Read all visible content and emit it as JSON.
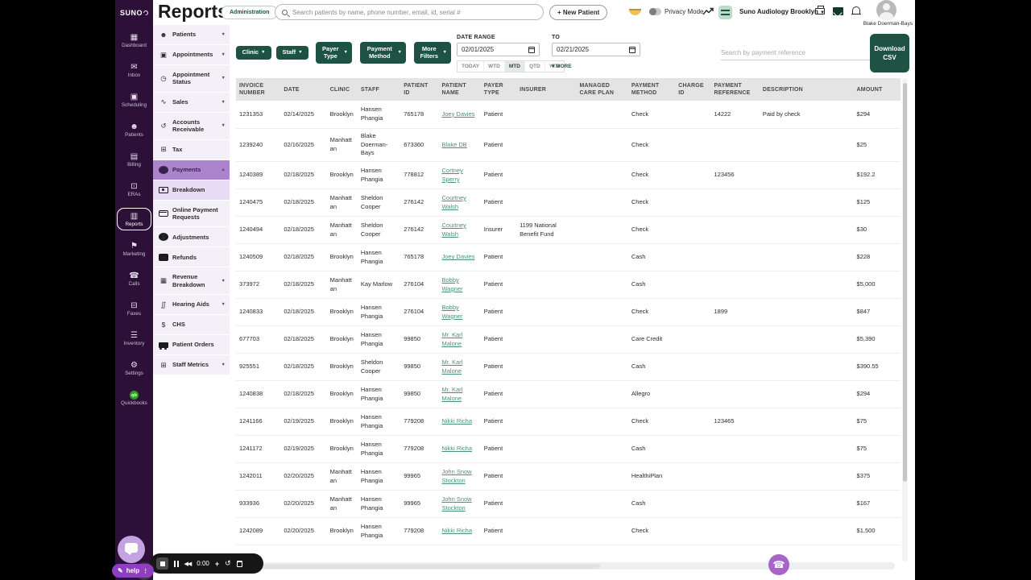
{
  "header": {
    "logo_text": "SUNO",
    "title": "Reports",
    "admin_chip": "Administration",
    "search_placeholder": "Search patients by name, phone number, email, id, serial #",
    "new_patient_label": "+ New Patient",
    "privacy_mode_label": "Privacy Mode",
    "clinic_selector": "Suno Audiology Brooklyn",
    "user_name": "Blake Doerman-Bays"
  },
  "nav_rail": {
    "items": [
      {
        "label": "Dashboard",
        "icon": "dashboard-icon",
        "active": false
      },
      {
        "label": "Inbox",
        "icon": "inbox-icon",
        "active": false
      },
      {
        "label": "Scheduling",
        "icon": "scheduling-icon",
        "active": false
      },
      {
        "label": "Patients",
        "icon": "patients-icon",
        "active": false
      },
      {
        "label": "Billing",
        "icon": "billing-icon",
        "active": false
      },
      {
        "label": "ERAs",
        "icon": "eras-icon",
        "active": false
      },
      {
        "label": "Reports",
        "icon": "reports-icon",
        "active": true
      },
      {
        "label": "Marketing",
        "icon": "marketing-icon",
        "active": false
      },
      {
        "label": "Calls",
        "icon": "calls-icon",
        "active": false
      },
      {
        "label": "Faxes",
        "icon": "faxes-icon",
        "active": false
      },
      {
        "label": "Inventory",
        "icon": "inventory-icon",
        "active": false
      },
      {
        "label": "Settings",
        "icon": "settings-icon",
        "active": false
      },
      {
        "label": "Quickbooks",
        "icon": "quickbooks-icon",
        "active": false
      }
    ]
  },
  "sidebar": {
    "items": [
      {
        "label": "Patients",
        "icon": "patients-icon",
        "chevron": "down",
        "state": "none"
      },
      {
        "label": "Appointments",
        "icon": "appointments-icon",
        "chevron": "down",
        "state": "none"
      },
      {
        "label": "Appointment Status",
        "icon": "appointment-status-icon",
        "chevron": "down",
        "state": "none"
      },
      {
        "label": "Sales",
        "icon": "sales-icon",
        "chevron": "down",
        "state": "none"
      },
      {
        "label": "Accounts Receivable",
        "icon": "accounts-receivable-icon",
        "chevron": "down",
        "state": "none"
      },
      {
        "label": "Tax",
        "icon": "tax-icon",
        "chevron": "none",
        "state": "none"
      },
      {
        "label": "Payments",
        "icon": "payments-icon",
        "chevron": "up",
        "state": "active"
      },
      {
        "label": "Breakdown",
        "icon": "breakdown-icon",
        "chevron": "none",
        "state": "subactive"
      },
      {
        "label": "Online Payment Requests",
        "icon": "online-payment-requests-icon",
        "chevron": "none",
        "state": "none"
      },
      {
        "label": "Adjustments",
        "icon": "adjustments-icon",
        "chevron": "none",
        "state": "none"
      },
      {
        "label": "Refunds",
        "icon": "refunds-icon",
        "chevron": "none",
        "state": "none"
      },
      {
        "label": "Revenue Breakdown",
        "icon": "revenue-breakdown-icon",
        "chevron": "down",
        "state": "none"
      },
      {
        "label": "Hearing Aids",
        "icon": "hearing-aids-icon",
        "chevron": "down",
        "state": "none"
      },
      {
        "label": "CHS",
        "icon": "chs-icon",
        "chevron": "none",
        "state": "none"
      },
      {
        "label": "Patient Orders",
        "icon": "patient-orders-icon",
        "chevron": "none",
        "state": "none"
      },
      {
        "label": "Staff Metrics",
        "icon": "staff-metrics-icon",
        "chevron": "down",
        "state": "none"
      }
    ]
  },
  "filters": {
    "dropdowns": [
      {
        "label": "Clinic",
        "tall": false
      },
      {
        "label": "Staff",
        "tall": false
      },
      {
        "label": "Payer Type",
        "tall": true
      },
      {
        "label": "Payment Method",
        "tall": true
      },
      {
        "label": "More Filters",
        "tall": true
      }
    ],
    "date_range_label": "DATE RANGE",
    "date_from": "02/01/2025",
    "to_label": "TO",
    "date_to": "02/21/2025",
    "quick_ranges": [
      "TODAY",
      "WTD",
      "MTD",
      "QTD",
      "YTD"
    ],
    "active_range": "MTD",
    "more_label": "MORE",
    "ref_search_placeholder": "Search by payment reference",
    "download_label": "Download CSV"
  },
  "table": {
    "columns": [
      "Invoice Number",
      "Date",
      "Clinic",
      "Staff",
      "Patient ID",
      "Patient Name",
      "Payer Type",
      "Insurer",
      "Managed Care Plan",
      "Payment Method",
      "Charge ID",
      "Payment Reference",
      "Description",
      "Amount"
    ],
    "rows": [
      [
        "1231353",
        "02/14/2025",
        "Brooklyn",
        "Hansen Phangia",
        "765178",
        "Joey Davies",
        "Patient",
        "",
        "",
        "Check",
        "",
        "14222",
        "Paid by check",
        "$294"
      ],
      [
        "1239240",
        "02/16/2025",
        "Manhattan",
        "Blake Doerman-Bays",
        "673360",
        "Blake DB",
        "Patient",
        "",
        "",
        "Check",
        "",
        "",
        "",
        "$25"
      ],
      [
        "1240389",
        "02/18/2025",
        "Brooklyn",
        "Hansen Phangia",
        "778812",
        "Cortney Sperry",
        "Patient",
        "",
        "",
        "Check",
        "",
        "123456",
        "",
        "$192.2"
      ],
      [
        "1240475",
        "02/18/2025",
        "Manhattan",
        "Sheldon Cooper",
        "276142",
        "Courtney Walsh",
        "Patient",
        "",
        "",
        "Check",
        "",
        "",
        "",
        "$125"
      ],
      [
        "1240494",
        "02/18/2025",
        "Manhattan",
        "Sheldon Cooper",
        "276142",
        "Courtney Walsh",
        "Insurer",
        "1199 National Benefit Fund",
        "",
        "Check",
        "",
        "",
        "",
        "$30"
      ],
      [
        "1240509",
        "02/18/2025",
        "Brooklyn",
        "Hansen Phangia",
        "765178",
        "Joey Davies",
        "Patient",
        "",
        "",
        "Cash",
        "",
        "",
        "",
        "$228"
      ],
      [
        "373972",
        "02/18/2025",
        "Manhattan",
        "Kay Marlow",
        "276104",
        "Bobby Wagner",
        "Patient",
        "",
        "",
        "Cash",
        "",
        "",
        "",
        "$5,000"
      ],
      [
        "1240833",
        "02/18/2025",
        "Brooklyn",
        "Hansen Phangia",
        "276104",
        "Bobby Wagner",
        "Patient",
        "",
        "",
        "Check",
        "",
        "1899",
        "",
        "$847"
      ],
      [
        "677703",
        "02/18/2025",
        "Brooklyn",
        "Hansen Phangia",
        "99850",
        "Mr. Karl Malone",
        "Patient",
        "",
        "",
        "Care Credit",
        "",
        "",
        "",
        "$5,390"
      ],
      [
        "925551",
        "02/18/2025",
        "Brooklyn",
        "Sheldon Cooper",
        "99850",
        "Mr. Karl Malone",
        "Patient",
        "",
        "",
        "Cash",
        "",
        "",
        "",
        "$390.55"
      ],
      [
        "1240838",
        "02/18/2025",
        "Brooklyn",
        "Hansen Phangia",
        "99850",
        "Mr. Karl Malone",
        "Patient",
        "",
        "",
        "Allegro",
        "",
        "",
        "",
        "$294"
      ],
      [
        "1241166",
        "02/19/2025",
        "Brooklyn",
        "Hansen Phangia",
        "779208",
        "Nikki Richa",
        "Patient",
        "",
        "",
        "Check",
        "",
        "123465",
        "",
        "$75"
      ],
      [
        "1241172",
        "02/19/2025",
        "Brooklyn",
        "Hansen Phangia",
        "779208",
        "Nikki Richa",
        "Patient",
        "",
        "",
        "Cash",
        "",
        "",
        "",
        "$75"
      ],
      [
        "1242011",
        "02/20/2025",
        "Manhattan",
        "Hansen Phangia",
        "99965",
        "John Snow Stockton",
        "Patient",
        "",
        "",
        "HealthiPlan",
        "",
        "",
        "",
        "$375"
      ],
      [
        "933936",
        "02/20/2025",
        "Manhattan",
        "Hansen Phangia",
        "99965",
        "John Snow Stockton",
        "Patient",
        "",
        "",
        "Cash",
        "",
        "",
        "",
        "$167"
      ],
      [
        "1242089",
        "02/20/2025",
        "Brooklyn",
        "Hansen Phangia",
        "779208",
        "Nikki Richa",
        "Patient",
        "",
        "",
        "Check",
        "",
        "",
        "",
        "$1,500"
      ]
    ]
  },
  "overlays": {
    "recorder_time": "0:00",
    "help_label": "help"
  },
  "colors": {
    "accent_green": "#1d5245",
    "sidebar_purple": "#2c1038",
    "active_purple": "#ab84cd",
    "subactive_purple": "#e7dcf3",
    "link_teal": "#4a9179",
    "quickbooks_green": "#2ca01c"
  }
}
